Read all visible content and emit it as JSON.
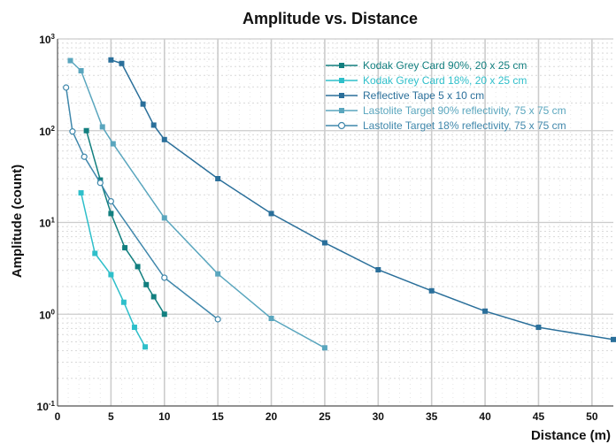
{
  "chart_data": {
    "type": "line",
    "title": "Amplitude vs. Distance",
    "xlabel": "Distance (m)",
    "ylabel": "Amplitude (count)",
    "xlim": [
      0,
      52
    ],
    "ylim": [
      0.1,
      1000
    ],
    "y_scale": "log",
    "x_ticks": [
      0,
      5,
      10,
      15,
      20,
      25,
      30,
      35,
      40,
      45,
      50
    ],
    "y_ticks": [
      {
        "base": "10",
        "exp": "-1"
      },
      {
        "base": "10",
        "exp": "0"
      },
      {
        "base": "10",
        "exp": "1"
      },
      {
        "base": "10",
        "exp": "2"
      },
      {
        "base": "10",
        "exp": "3"
      }
    ],
    "grid": true,
    "legend_position": "top-right",
    "series": [
      {
        "name": "Kodak Grey Card 90%, 20 x 25 cm",
        "color": "#127f7f",
        "marker": "square-filled",
        "x": [
          2.7,
          4.0,
          5.0,
          6.3,
          7.5,
          8.3,
          9.0,
          10.0
        ],
        "y": [
          100,
          29,
          12.5,
          5.3,
          3.3,
          2.1,
          1.55,
          1.0
        ]
      },
      {
        "name": "Kodak Grey Card 18%, 20 x 25 cm",
        "color": "#2ebfca",
        "marker": "square-filled",
        "x": [
          2.2,
          3.5,
          5.0,
          6.2,
          7.2,
          8.2
        ],
        "y": [
          21,
          4.6,
          2.7,
          1.35,
          0.72,
          0.44
        ]
      },
      {
        "name": "Reflective Tape 5 x 10 cm",
        "color": "#2a6f9a",
        "marker": "square-filled",
        "x": [
          5.0,
          6.0,
          8.0,
          9.0,
          10.0,
          15.0,
          20.0,
          25.0,
          30.0,
          35.0,
          40.0,
          45.0,
          52.0
        ],
        "y": [
          590,
          540,
          195,
          115,
          80,
          30,
          12.5,
          6.0,
          3.05,
          1.8,
          1.08,
          0.72,
          0.53
        ]
      },
      {
        "name": "Lastolite Target 90% reflectivity, 75 x 75 cm",
        "color": "#5aa6be",
        "marker": "square-filled",
        "x": [
          1.2,
          2.2,
          4.2,
          5.2,
          10.0,
          15.0,
          20.0,
          25.0
        ],
        "y": [
          580,
          450,
          110,
          72,
          11.2,
          2.75,
          0.9,
          0.43
        ]
      },
      {
        "name": "Lastolite Target 18% reflectivity, 75 x 75 cm",
        "color": "#3f87ab",
        "marker": "circle-open",
        "x": [
          0.8,
          1.4,
          2.5,
          4.0,
          5.0,
          10.0,
          15.0
        ],
        "y": [
          295,
          98,
          52,
          27,
          17,
          2.5,
          0.88
        ]
      }
    ]
  }
}
